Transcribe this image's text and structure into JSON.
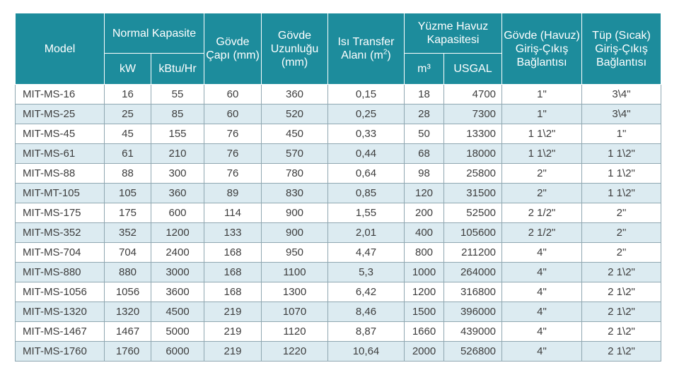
{
  "headers": {
    "model": "Model",
    "normal_capacity": "Normal Kapasite",
    "kw": "kW",
    "kbtu": "kBtu/Hr",
    "body_diameter": "Gövde Çapı (mm)",
    "body_length": "Gövde Uzunluğu (mm)",
    "heat_transfer_prefix": "Isı Transfer Alanı (m",
    "heat_transfer_sup": "2",
    "heat_transfer_suffix": ")",
    "pool_capacity": "Yüzme Havuz Kapasitesi",
    "m3": "m³",
    "usgal": "USGAL",
    "shell_connection": "Gövde (Havuz) Giriş-Çıkış Bağlantısı",
    "tube_connection": "Tüp (Sıcak) Giriş-Çıkış Bağlantısı"
  },
  "rows": [
    {
      "model": "MIT-MS-16",
      "kw": "16",
      "kbtu": "55",
      "diameter": "60",
      "length": "360",
      "area": "0,15",
      "m3": "18",
      "usgal": "4700",
      "shell": "1\"",
      "tube": "3\\4\""
    },
    {
      "model": "MIT-MS-25",
      "kw": "25",
      "kbtu": "85",
      "diameter": "60",
      "length": "520",
      "area": "0,25",
      "m3": "28",
      "usgal": "7300",
      "shell": "1\"",
      "tube": "3\\4\""
    },
    {
      "model": "MIT-MS-45",
      "kw": "45",
      "kbtu": "155",
      "diameter": "76",
      "length": "450",
      "area": "0,33",
      "m3": "50",
      "usgal": "13300",
      "shell": "1 1\\2\"",
      "tube": "1\""
    },
    {
      "model": "MIT-MS-61",
      "kw": "61",
      "kbtu": "210",
      "diameter": "76",
      "length": "570",
      "area": "0,44",
      "m3": "68",
      "usgal": "18000",
      "shell": "1 1\\2\"",
      "tube": "1 1\\2\""
    },
    {
      "model": "MIT-MS-88",
      "kw": "88",
      "kbtu": "300",
      "diameter": "76",
      "length": "780",
      "area": "0,64",
      "m3": "98",
      "usgal": "25800",
      "shell": "2\"",
      "tube": "1 1\\2\""
    },
    {
      "model": "MIT-MT-105",
      "kw": "105",
      "kbtu": "360",
      "diameter": "89",
      "length": "830",
      "area": "0,85",
      "m3": "120",
      "usgal": "31500",
      "shell": "2\"",
      "tube": "1 1\\2\""
    },
    {
      "model": "MIT-MS-175",
      "kw": "175",
      "kbtu": "600",
      "diameter": "114",
      "length": "900",
      "area": "1,55",
      "m3": "200",
      "usgal": "52500",
      "shell": "2 1/2\"",
      "tube": "2\""
    },
    {
      "model": "MIT-MS-352",
      "kw": "352",
      "kbtu": "1200",
      "diameter": "133",
      "length": "900",
      "area": "2,01",
      "m3": "400",
      "usgal": "105600",
      "shell": "2 1/2\"",
      "tube": "2\""
    },
    {
      "model": "MIT-MS-704",
      "kw": "704",
      "kbtu": "2400",
      "diameter": "168",
      "length": "950",
      "area": "4,47",
      "m3": "800",
      "usgal": "211200",
      "shell": "4\"",
      "tube": "2\""
    },
    {
      "model": "MIT-MS-880",
      "kw": "880",
      "kbtu": "3000",
      "diameter": "168",
      "length": "1100",
      "area": "5,3",
      "m3": "1000",
      "usgal": "264000",
      "shell": "4\"",
      "tube": "2 1\\2\""
    },
    {
      "model": "MIT-MS-1056",
      "kw": "1056",
      "kbtu": "3600",
      "diameter": "168",
      "length": "1300",
      "area": "6,42",
      "m3": "1200",
      "usgal": "316800",
      "shell": "4\"",
      "tube": "2 1\\2\""
    },
    {
      "model": "MIT-MS-1320",
      "kw": "1320",
      "kbtu": "4500",
      "diameter": "219",
      "length": "1070",
      "area": "8,46",
      "m3": "1500",
      "usgal": "396000",
      "shell": "4\"",
      "tube": "2 1\\2\""
    },
    {
      "model": "MIT-MS-1467",
      "kw": "1467",
      "kbtu": "5000",
      "diameter": "219",
      "length": "1120",
      "area": "8,87",
      "m3": "1660",
      "usgal": "439000",
      "shell": "4\"",
      "tube": "2 1\\2\""
    },
    {
      "model": "MIT-MS-1760",
      "kw": "1760",
      "kbtu": "6000",
      "diameter": "219",
      "length": "1220",
      "area": "10,64",
      "m3": "2000",
      "usgal": "526800",
      "shell": "4\"",
      "tube": "2 1\\2\""
    }
  ],
  "colors": {
    "header_bg": "#1d8c9c",
    "alt_row_bg": "#dcebf1",
    "border": "#8fa7b1"
  }
}
